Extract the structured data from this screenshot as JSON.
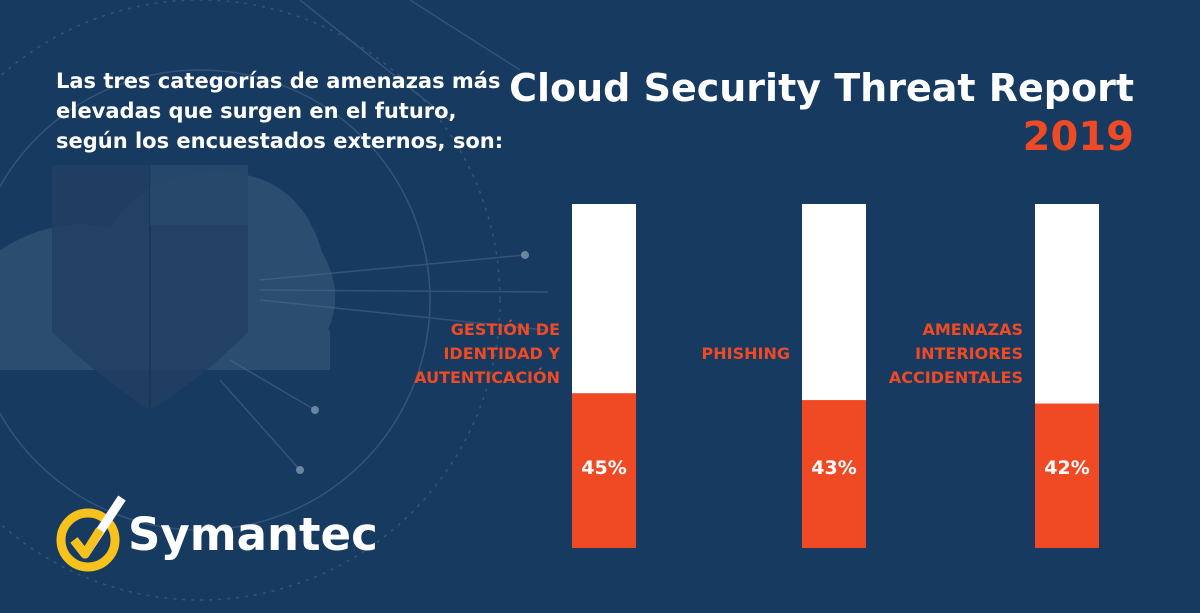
{
  "intro_text": "Las tres categorías de amenazas más elevadas que surgen en el futuro, según los encuestados externos, son:",
  "report": {
    "title": "Cloud Security Threat Report",
    "year": "2019"
  },
  "brand": {
    "name": "Symantec"
  },
  "icons": {
    "logo": "symantec-checkmark-icon",
    "background": "cloud-shield-icon"
  },
  "colors": {
    "background": "#173a60",
    "accent": "#f04a24",
    "bar_track": "#ffffff",
    "logo_yellow": "#f7c21b"
  },
  "chart_data": {
    "type": "bar",
    "orientation": "vertical",
    "title": "",
    "xlabel": "",
    "ylabel": "",
    "ylim": [
      0,
      100
    ],
    "grid": false,
    "categories": [
      "GESTIÓN DE\nIDENTIDAD Y\nAUTENTICACIÓN",
      "PHISHING",
      "AMENAZAS\nINTERIORES\nACCIDENTALES"
    ],
    "values": [
      45,
      43,
      42
    ],
    "data_labels": [
      "45%",
      "43%",
      "42%"
    ]
  }
}
